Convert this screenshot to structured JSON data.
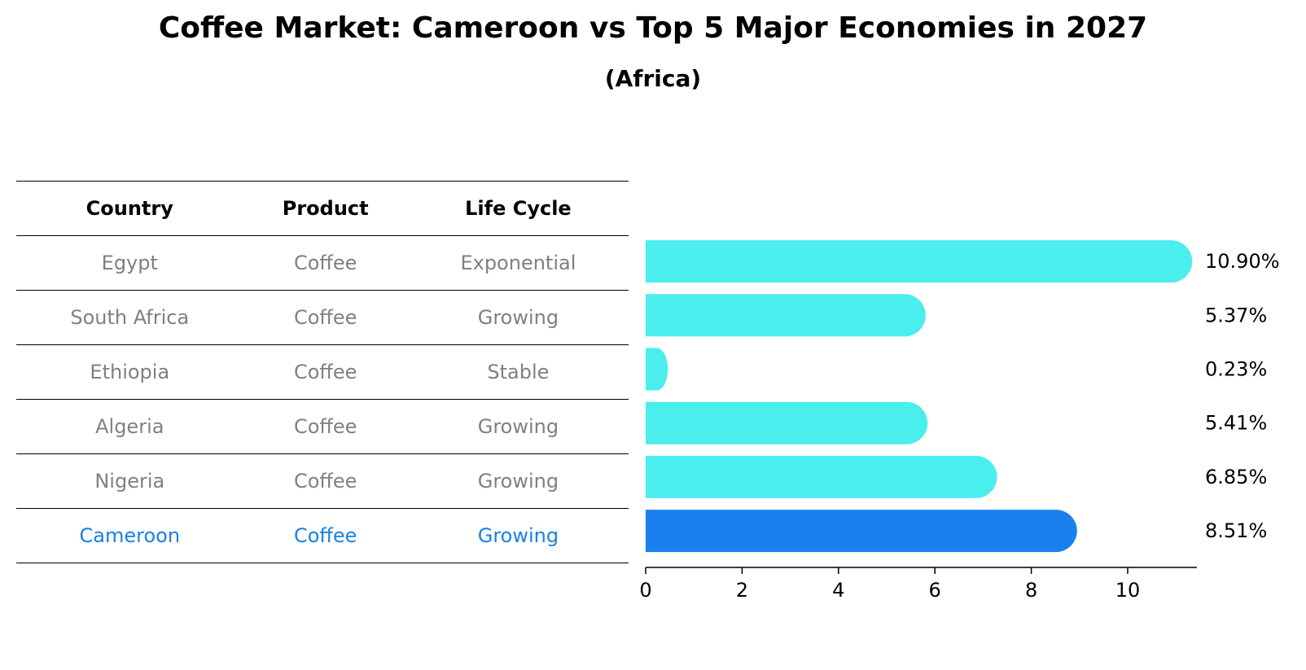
{
  "title": "Coffee Market: Cameroon vs Top 5 Major Economies in 2027",
  "subtitle": "(Africa)",
  "table": {
    "headers": [
      "Country",
      "Product",
      "Life Cycle"
    ],
    "rows": [
      [
        "Egypt",
        "Coffee",
        "Exponential"
      ],
      [
        "South Africa",
        "Coffee",
        "Growing"
      ],
      [
        "Ethiopia",
        "Coffee",
        "Stable"
      ],
      [
        "Algeria",
        "Coffee",
        "Growing"
      ],
      [
        "Nigeria",
        "Coffee",
        "Growing"
      ],
      [
        "Cameroon",
        "Coffee",
        "Growing"
      ]
    ],
    "highlight_row": 5
  },
  "chart_data": {
    "type": "bar",
    "orientation": "horizontal",
    "categories": [
      "Egypt",
      "South Africa",
      "Ethiopia",
      "Algeria",
      "Nigeria",
      "Cameroon"
    ],
    "values": [
      10.9,
      5.37,
      0.23,
      5.41,
      6.85,
      8.51
    ],
    "value_labels": [
      "10.90%",
      "5.37%",
      "0.23%",
      "5.41%",
      "6.85%",
      "8.51%"
    ],
    "xticks": [
      0,
      2,
      4,
      6,
      8,
      10
    ],
    "xlim": [
      0,
      11.45
    ],
    "grid": false,
    "colors": {
      "default": "#4aeeed",
      "highlight": "#1a80ee"
    },
    "highlight_index": 5
  }
}
